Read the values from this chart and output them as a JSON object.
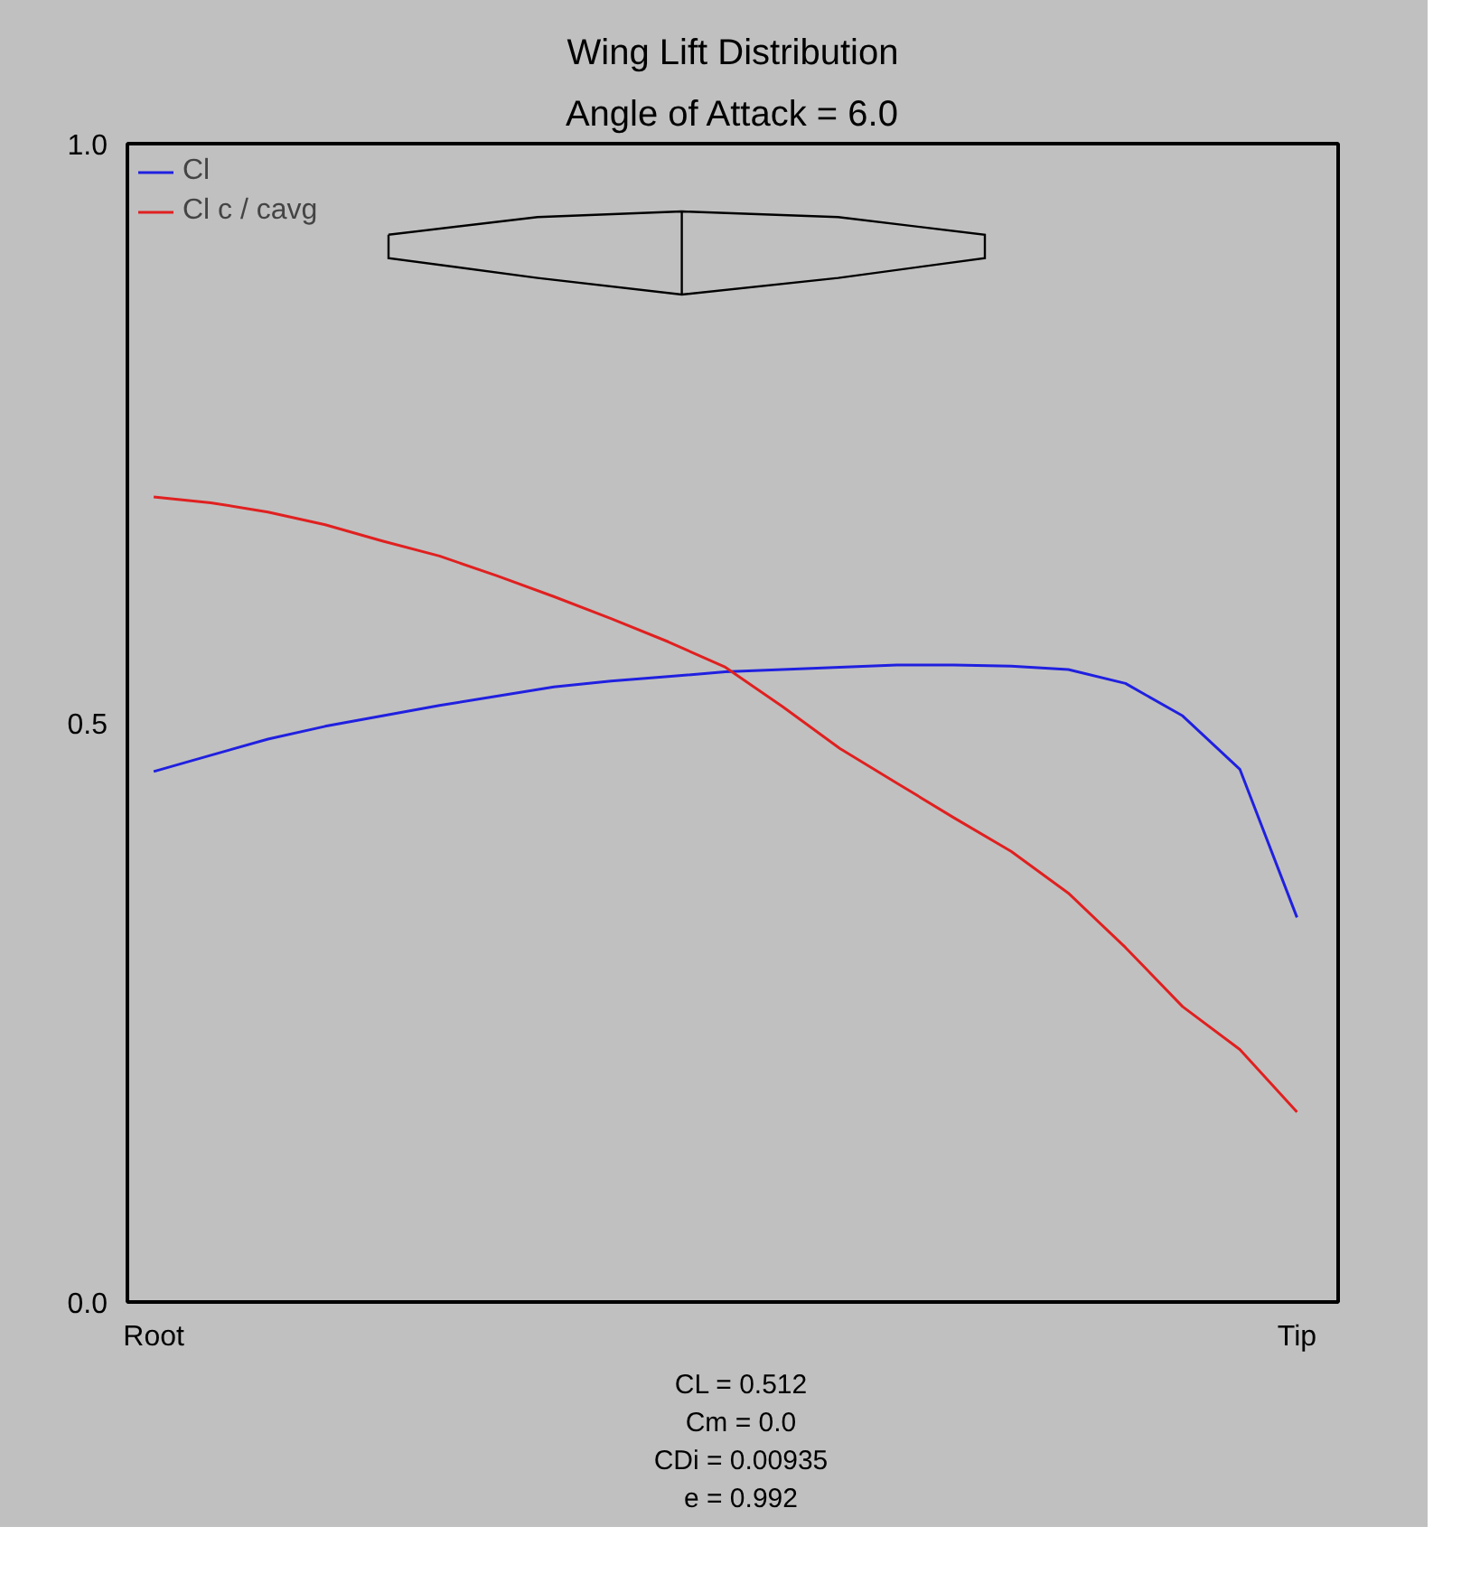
{
  "chart_data": {
    "type": "line",
    "title": "Wing Lift Distribution",
    "subtitle": "Angle of Attack = 6.0",
    "categories": [
      "Root",
      null,
      null,
      null,
      null,
      null,
      null,
      null,
      null,
      null,
      null,
      null,
      null,
      null,
      null,
      null,
      null,
      null,
      null,
      null,
      "Tip"
    ],
    "ylim": [
      0,
      1
    ],
    "yticks": [
      {
        "value": 0,
        "label": "0.0"
      },
      {
        "value": 0.5,
        "label": "0.5"
      },
      {
        "value": 1,
        "label": "1.0"
      }
    ],
    "series": [
      {
        "name": "Cl",
        "color": "#2020e0",
        "values": [
          0.458,
          0.472,
          0.486,
          0.497,
          0.506,
          0.515,
          0.523,
          0.531,
          0.536,
          0.54,
          0.544,
          0.546,
          0.548,
          0.55,
          0.55,
          0.549,
          0.546,
          0.534,
          0.506,
          0.46,
          0.332
        ]
      },
      {
        "name": "Cl c / cavg",
        "color": "#e02020",
        "values": [
          0.695,
          0.69,
          0.682,
          0.671,
          0.657,
          0.644,
          0.627,
          0.609,
          0.59,
          0.57,
          0.548,
          0.514,
          0.478,
          0.448,
          0.418,
          0.389,
          0.353,
          0.306,
          0.255,
          0.218,
          0.164
        ]
      }
    ],
    "legend": "top left",
    "grid": false,
    "line_style": "solid",
    "annotations": [
      "CL = 0.512",
      "Cm = 0.0",
      "CDi = 0.00935",
      "e = 0.992"
    ]
  }
}
